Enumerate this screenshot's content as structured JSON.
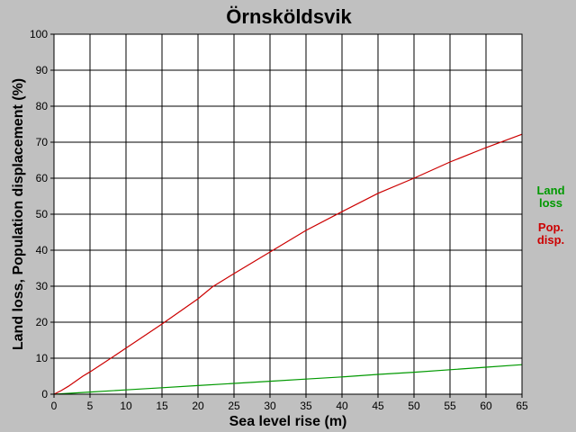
{
  "chart_data": {
    "type": "line",
    "title": "Örnsköldsvik",
    "xlabel": "Sea level rise (m)",
    "ylabel": "Land loss, Population displacement (%)",
    "xlim": [
      0,
      65
    ],
    "ylim": [
      0,
      100
    ],
    "x_ticks": [
      "0",
      "5",
      "10",
      "15",
      "20",
      "25",
      "30",
      "35",
      "40",
      "45",
      "50",
      "55",
      "60",
      "65"
    ],
    "y_ticks": [
      "0",
      "10",
      "20",
      "30",
      "40",
      "50",
      "60",
      "70",
      "80",
      "90",
      "100"
    ],
    "grid": true,
    "legend_position": "right",
    "series": [
      {
        "name": "Land loss",
        "legend_lines": [
          "Land",
          "loss"
        ],
        "color": "#009900",
        "points": [
          [
            0,
            0
          ],
          [
            5,
            0.6
          ],
          [
            10,
            1.2
          ],
          [
            15,
            1.8
          ],
          [
            20,
            2.4
          ],
          [
            25,
            3.0
          ],
          [
            30,
            3.6
          ],
          [
            35,
            4.2
          ],
          [
            40,
            4.8
          ],
          [
            45,
            5.5
          ],
          [
            50,
            6.1
          ],
          [
            55,
            6.8
          ],
          [
            60,
            7.5
          ],
          [
            65,
            8.2
          ]
        ]
      },
      {
        "name": "Pop. disp.",
        "legend_lines": [
          "Pop.",
          "disp."
        ],
        "color": "#cc0000",
        "points": [
          [
            0,
            0
          ],
          [
            1,
            1
          ],
          [
            2,
            2.2
          ],
          [
            3,
            3.6
          ],
          [
            4,
            5
          ],
          [
            5,
            6.2
          ],
          [
            7,
            8.8
          ],
          [
            10,
            12.8
          ],
          [
            15,
            19.5
          ],
          [
            20,
            26.5
          ],
          [
            22,
            29.8
          ],
          [
            25,
            33.5
          ],
          [
            30,
            39.5
          ],
          [
            35,
            45.5
          ],
          [
            40,
            50.7
          ],
          [
            45,
            55.8
          ],
          [
            50,
            60
          ],
          [
            55,
            64.5
          ],
          [
            60,
            68.5
          ],
          [
            65,
            72.2
          ]
        ]
      }
    ]
  }
}
